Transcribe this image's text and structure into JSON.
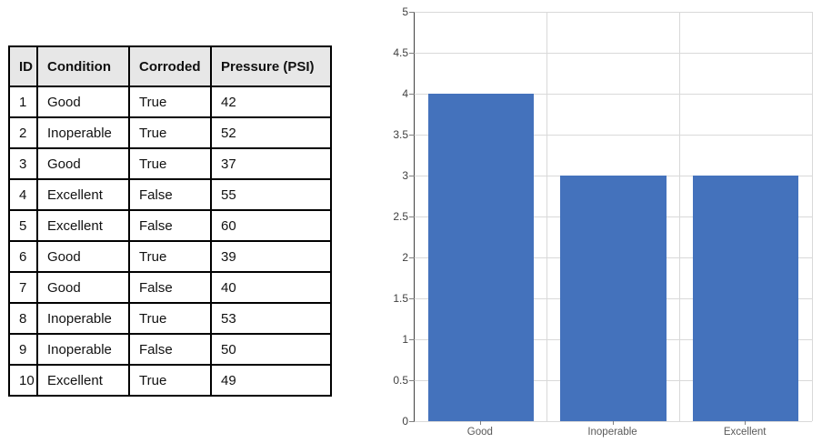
{
  "table": {
    "headers": [
      "ID",
      "Condition",
      "Corroded",
      "Pressure (PSI)"
    ],
    "rows": [
      [
        "1",
        "Good",
        "True",
        "42"
      ],
      [
        "2",
        "Inoperable",
        "True",
        "52"
      ],
      [
        "3",
        "Good",
        "True",
        "37"
      ],
      [
        "4",
        "Excellent",
        "False",
        "55"
      ],
      [
        "5",
        "Excellent",
        "False",
        "60"
      ],
      [
        "6",
        "Good",
        "True",
        "39"
      ],
      [
        "7",
        "Good",
        "False",
        "40"
      ],
      [
        "8",
        "Inoperable",
        "True",
        "53"
      ],
      [
        "9",
        "Inoperable",
        "False",
        "50"
      ],
      [
        "10",
        "Excellent",
        "True",
        "49"
      ]
    ]
  },
  "chart_data": {
    "type": "bar",
    "categories": [
      "Good",
      "Inoperable",
      "Excellent"
    ],
    "values": [
      4,
      3,
      3
    ],
    "title": "",
    "xlabel": "",
    "ylabel": "",
    "ylim": [
      0,
      5
    ],
    "ytick_step": 0.5,
    "grid": true,
    "legend": false,
    "bar_color": "#4472bc"
  },
  "colors": {
    "table_header_bg": "#e7e7e7",
    "table_border": "#000000",
    "grid_line": "#d9d9d9",
    "axis_line": "#404040",
    "tick_mark": "#808080",
    "y_label": "#404040",
    "x_label": "#595959",
    "bar": "#4472bc"
  }
}
